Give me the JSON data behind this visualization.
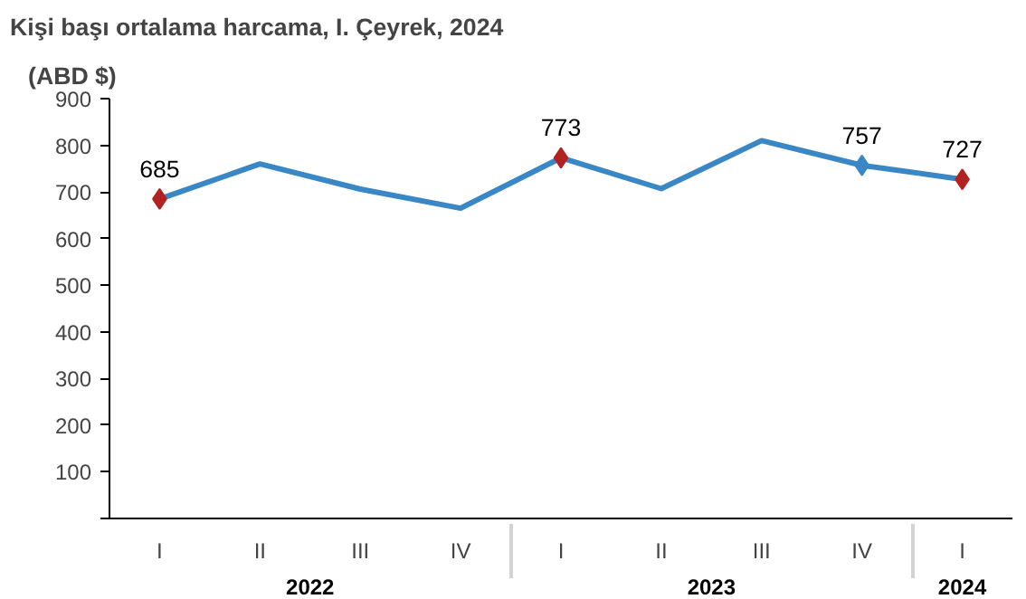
{
  "chart_data": {
    "type": "line",
    "title": "Kişi başı ortalama harcama, I. Çeyrek, 2024",
    "ylabel": "(ABD $)",
    "categories": [
      "I",
      "II",
      "III",
      "IV",
      "I",
      "II",
      "III",
      "IV",
      "I"
    ],
    "annotations": [
      "2022",
      "2023",
      "2024"
    ],
    "series": [
      {
        "color": "#3a87c6",
        "values": [
          685,
          760,
          706,
          665,
          773,
          707,
          810,
          757,
          727
        ],
        "colors": [
          "#b22222",
          null,
          null,
          null,
          "#b22222",
          null,
          null,
          "#3a87c6",
          "#b22222"
        ],
        "value_labels": [
          "685",
          null,
          null,
          null,
          "773",
          null,
          null,
          "757",
          "727"
        ]
      }
    ],
    "ylim": [
      0,
      900
    ],
    "yticks": [
      {
        "value": 0,
        "label": null
      },
      100,
      200,
      300,
      400,
      500,
      600,
      700,
      800,
      900
    ],
    "line_style": "solid",
    "grid": false
  }
}
